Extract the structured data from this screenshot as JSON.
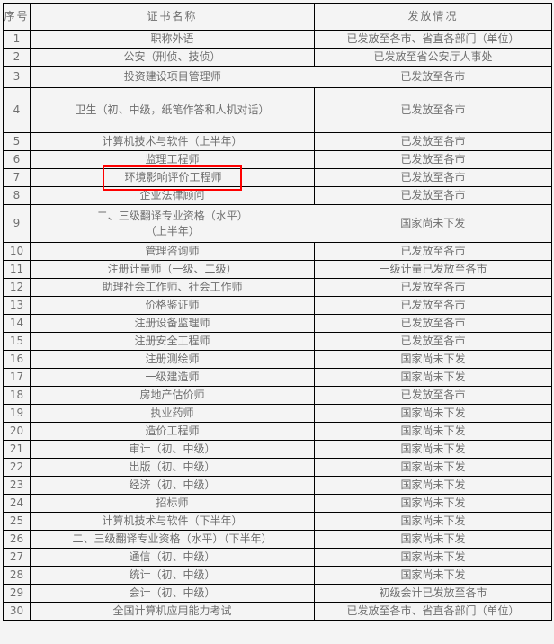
{
  "colors": {
    "background": "#f4f4f4",
    "border": "#000000",
    "text": "#6f6f6f",
    "highlight_border": "#ff0000"
  },
  "table": {
    "headers": [
      "序号",
      "证书名称",
      "发放情况"
    ],
    "rows": [
      {
        "no": "1",
        "name": "职称外语",
        "status": "已发放至各市、省直各部门（单位）"
      },
      {
        "no": "2",
        "name": "公安（刑侦、技侦）",
        "status": "已发放至省公安厅人事处"
      },
      {
        "no": "3",
        "name": "投资建设项目管理师",
        "status": "已发放至各市"
      },
      {
        "no": "4",
        "name": "卫生（初、中级，纸笔作答和人机对话）",
        "status": "已发放至各市"
      },
      {
        "no": "5",
        "name": "计算机技术与软件（上半年）",
        "status": "已发放至各市"
      },
      {
        "no": "6",
        "name": "监理工程师",
        "status": "已发放至各市"
      },
      {
        "no": "7",
        "name": "环境影响评价工程师",
        "status": "已发放至各市",
        "highlighted": true
      },
      {
        "no": "8",
        "name": "企业法律顾问",
        "status": "已发放至各市"
      },
      {
        "no": "9",
        "name": "二、三级翻译专业资格（水平）\n（上半年）",
        "status": "国家尚未下发"
      },
      {
        "no": "10",
        "name": "管理咨询师",
        "status": "已发放至各市"
      },
      {
        "no": "11",
        "name": "注册计量师（一级、二级）",
        "status": "一级计量已发放至各市"
      },
      {
        "no": "12",
        "name": "助理社会工作师、社会工作师",
        "status": "已发放至各市"
      },
      {
        "no": "13",
        "name": "价格鉴证师",
        "status": "已发放至各市"
      },
      {
        "no": "14",
        "name": "注册设备监理师",
        "status": "已发放至各市"
      },
      {
        "no": "15",
        "name": "注册安全工程师",
        "status": "已发放至各市"
      },
      {
        "no": "16",
        "name": "注册测绘师",
        "status": "国家尚未下发"
      },
      {
        "no": "17",
        "name": "一级建造师",
        "status": "国家尚未下发"
      },
      {
        "no": "18",
        "name": "房地产估价师",
        "status": "已发放至各市"
      },
      {
        "no": "19",
        "name": "执业药师",
        "status": "国家尚未下发"
      },
      {
        "no": "20",
        "name": "造价工程师",
        "status": "国家尚未下发"
      },
      {
        "no": "21",
        "name": "审计（初、中级）",
        "status": "国家尚未下发"
      },
      {
        "no": "22",
        "name": "出版（初、中级）",
        "status": "国家尚未下发"
      },
      {
        "no": "23",
        "name": "经济（初、中级）",
        "status": "国家尚未下发"
      },
      {
        "no": "24",
        "name": "招标师",
        "status": "国家尚未下发"
      },
      {
        "no": "25",
        "name": "计算机技术与软件（下半年）",
        "status": "国家尚未下发"
      },
      {
        "no": "26",
        "name": "二、三级翻译专业资格（水平）（下半年）",
        "status": "国家尚未下发"
      },
      {
        "no": "27",
        "name": "通信（初、中级）",
        "status": "国家尚未下发"
      },
      {
        "no": "28",
        "name": "统计（初、中级）",
        "status": "国家尚未下发"
      },
      {
        "no": "29",
        "name": "会计（初、中级）",
        "status": "初级会计已发放至各市"
      },
      {
        "no": "30",
        "name": "全国计算机应用能力考试",
        "status": "已发放至各市、省直各部门（单位）"
      }
    ]
  }
}
